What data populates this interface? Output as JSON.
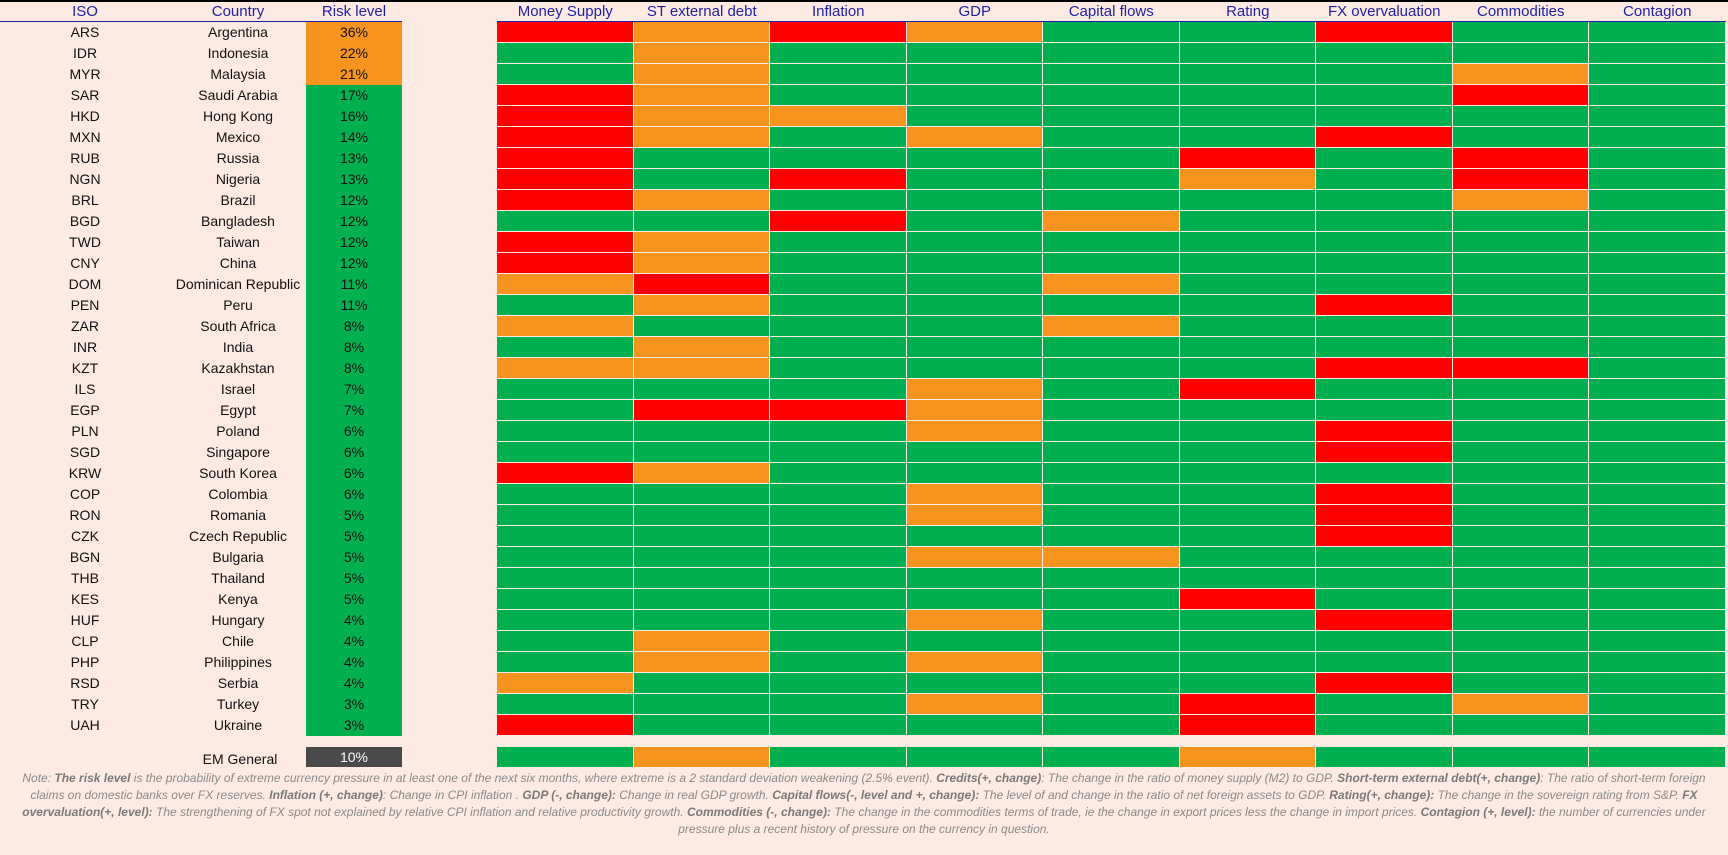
{
  "colors": {
    "green": "#00b050",
    "orange": "#f79420",
    "red": "#ff0000",
    "background": "#fdebe3",
    "header_text": "#1f1fa8",
    "em_box": "#4a4a4a"
  },
  "headers": {
    "iso": "ISO",
    "country": "Country",
    "risk": "Risk level",
    "indicators": [
      "Money Supply",
      "ST external debt",
      "Inflation",
      "GDP",
      "Capital flows",
      "Rating",
      "FX overvaluation",
      "Commodities",
      "Contagion"
    ]
  },
  "rows": [
    {
      "iso": "ARS",
      "country": "Argentina",
      "risk": "36%",
      "risk_color": "orange",
      "cells": [
        "red",
        "orange",
        "red",
        "orange",
        "green",
        "green",
        "red",
        "green",
        "green"
      ]
    },
    {
      "iso": "IDR",
      "country": "Indonesia",
      "risk": "22%",
      "risk_color": "orange",
      "cells": [
        "green",
        "orange",
        "green",
        "green",
        "green",
        "green",
        "green",
        "green",
        "green"
      ]
    },
    {
      "iso": "MYR",
      "country": "Malaysia",
      "risk": "21%",
      "risk_color": "orange",
      "cells": [
        "green",
        "orange",
        "green",
        "green",
        "green",
        "green",
        "green",
        "orange",
        "green"
      ]
    },
    {
      "iso": "SAR",
      "country": "Saudi Arabia",
      "risk": "17%",
      "risk_color": "green",
      "cells": [
        "red",
        "orange",
        "green",
        "green",
        "green",
        "green",
        "green",
        "red",
        "green"
      ]
    },
    {
      "iso": "HKD",
      "country": "Hong Kong",
      "risk": "16%",
      "risk_color": "green",
      "cells": [
        "red",
        "orange",
        "orange",
        "green",
        "green",
        "green",
        "green",
        "green",
        "green"
      ]
    },
    {
      "iso": "MXN",
      "country": "Mexico",
      "risk": "14%",
      "risk_color": "green",
      "cells": [
        "red",
        "orange",
        "green",
        "orange",
        "green",
        "green",
        "red",
        "green",
        "green"
      ]
    },
    {
      "iso": "RUB",
      "country": "Russia",
      "risk": "13%",
      "risk_color": "green",
      "cells": [
        "red",
        "green",
        "green",
        "green",
        "green",
        "red",
        "green",
        "red",
        "green"
      ]
    },
    {
      "iso": "NGN",
      "country": "Nigeria",
      "risk": "13%",
      "risk_color": "green",
      "cells": [
        "red",
        "green",
        "red",
        "green",
        "green",
        "orange",
        "green",
        "red",
        "green"
      ]
    },
    {
      "iso": "BRL",
      "country": "Brazil",
      "risk": "12%",
      "risk_color": "green",
      "cells": [
        "red",
        "orange",
        "green",
        "green",
        "green",
        "green",
        "green",
        "orange",
        "green"
      ]
    },
    {
      "iso": "BGD",
      "country": "Bangladesh",
      "risk": "12%",
      "risk_color": "green",
      "cells": [
        "green",
        "green",
        "red",
        "green",
        "orange",
        "green",
        "green",
        "green",
        "green"
      ]
    },
    {
      "iso": "TWD",
      "country": "Taiwan",
      "risk": "12%",
      "risk_color": "green",
      "cells": [
        "red",
        "orange",
        "green",
        "green",
        "green",
        "green",
        "green",
        "green",
        "green"
      ]
    },
    {
      "iso": "CNY",
      "country": "China",
      "risk": "12%",
      "risk_color": "green",
      "cells": [
        "red",
        "orange",
        "green",
        "green",
        "green",
        "green",
        "green",
        "green",
        "green"
      ]
    },
    {
      "iso": "DOM",
      "country": "Dominican Republic",
      "risk": "11%",
      "risk_color": "green",
      "cells": [
        "orange",
        "red",
        "green",
        "green",
        "orange",
        "green",
        "green",
        "green",
        "green"
      ]
    },
    {
      "iso": "PEN",
      "country": "Peru",
      "risk": "11%",
      "risk_color": "green",
      "cells": [
        "green",
        "orange",
        "green",
        "green",
        "green",
        "green",
        "red",
        "green",
        "green"
      ]
    },
    {
      "iso": "ZAR",
      "country": "South Africa",
      "risk": "8%",
      "risk_color": "green",
      "cells": [
        "orange",
        "green",
        "green",
        "green",
        "orange",
        "green",
        "green",
        "green",
        "green"
      ]
    },
    {
      "iso": "INR",
      "country": "India",
      "risk": "8%",
      "risk_color": "green",
      "cells": [
        "green",
        "orange",
        "green",
        "green",
        "green",
        "green",
        "green",
        "green",
        "green"
      ]
    },
    {
      "iso": "KZT",
      "country": "Kazakhstan",
      "risk": "8%",
      "risk_color": "green",
      "cells": [
        "orange",
        "orange",
        "green",
        "green",
        "green",
        "green",
        "red",
        "red",
        "green"
      ]
    },
    {
      "iso": "ILS",
      "country": "Israel",
      "risk": "7%",
      "risk_color": "green",
      "cells": [
        "green",
        "green",
        "green",
        "orange",
        "green",
        "red",
        "green",
        "green",
        "green"
      ]
    },
    {
      "iso": "EGP",
      "country": "Egypt",
      "risk": "7%",
      "risk_color": "green",
      "cells": [
        "green",
        "red",
        "red",
        "orange",
        "green",
        "green",
        "green",
        "green",
        "green"
      ]
    },
    {
      "iso": "PLN",
      "country": "Poland",
      "risk": "6%",
      "risk_color": "green",
      "cells": [
        "green",
        "green",
        "green",
        "orange",
        "green",
        "green",
        "red",
        "green",
        "green"
      ]
    },
    {
      "iso": "SGD",
      "country": "Singapore",
      "risk": "6%",
      "risk_color": "green",
      "cells": [
        "green",
        "green",
        "green",
        "green",
        "green",
        "green",
        "red",
        "green",
        "green"
      ]
    },
    {
      "iso": "KRW",
      "country": "South Korea",
      "risk": "6%",
      "risk_color": "green",
      "cells": [
        "red",
        "orange",
        "green",
        "green",
        "green",
        "green",
        "green",
        "green",
        "green"
      ]
    },
    {
      "iso": "COP",
      "country": "Colombia",
      "risk": "6%",
      "risk_color": "green",
      "cells": [
        "green",
        "green",
        "green",
        "orange",
        "green",
        "green",
        "red",
        "green",
        "green"
      ]
    },
    {
      "iso": "RON",
      "country": "Romania",
      "risk": "5%",
      "risk_color": "green",
      "cells": [
        "green",
        "green",
        "green",
        "orange",
        "green",
        "green",
        "red",
        "green",
        "green"
      ]
    },
    {
      "iso": "CZK",
      "country": "Czech Republic",
      "risk": "5%",
      "risk_color": "green",
      "cells": [
        "green",
        "green",
        "green",
        "green",
        "green",
        "green",
        "red",
        "green",
        "green"
      ]
    },
    {
      "iso": "BGN",
      "country": "Bulgaria",
      "risk": "5%",
      "risk_color": "green",
      "cells": [
        "green",
        "green",
        "green",
        "orange",
        "orange",
        "green",
        "green",
        "green",
        "green"
      ]
    },
    {
      "iso": "THB",
      "country": "Thailand",
      "risk": "5%",
      "risk_color": "green",
      "cells": [
        "green",
        "green",
        "green",
        "green",
        "green",
        "green",
        "green",
        "green",
        "green"
      ]
    },
    {
      "iso": "KES",
      "country": "Kenya",
      "risk": "5%",
      "risk_color": "green",
      "cells": [
        "green",
        "green",
        "green",
        "green",
        "green",
        "red",
        "green",
        "green",
        "green"
      ]
    },
    {
      "iso": "HUF",
      "country": "Hungary",
      "risk": "4%",
      "risk_color": "green",
      "cells": [
        "green",
        "green",
        "green",
        "orange",
        "green",
        "green",
        "red",
        "green",
        "green"
      ]
    },
    {
      "iso": "CLP",
      "country": "Chile",
      "risk": "4%",
      "risk_color": "green",
      "cells": [
        "green",
        "orange",
        "green",
        "green",
        "green",
        "green",
        "green",
        "green",
        "green"
      ]
    },
    {
      "iso": "PHP",
      "country": "Philippines",
      "risk": "4%",
      "risk_color": "green",
      "cells": [
        "green",
        "orange",
        "green",
        "orange",
        "green",
        "green",
        "green",
        "green",
        "green"
      ]
    },
    {
      "iso": "RSD",
      "country": "Serbia",
      "risk": "4%",
      "risk_color": "green",
      "cells": [
        "orange",
        "green",
        "green",
        "green",
        "green",
        "green",
        "red",
        "green",
        "green"
      ]
    },
    {
      "iso": "TRY",
      "country": "Turkey",
      "risk": "3%",
      "risk_color": "green",
      "cells": [
        "green",
        "green",
        "green",
        "orange",
        "green",
        "red",
        "green",
        "orange",
        "green"
      ]
    },
    {
      "iso": "UAH",
      "country": "Ukraine",
      "risk": "3%",
      "risk_color": "green",
      "cells": [
        "red",
        "green",
        "green",
        "green",
        "green",
        "red",
        "green",
        "green",
        "green"
      ]
    }
  ],
  "em_general": {
    "label": "EM General",
    "value": "10%",
    "cells": [
      "green",
      "orange",
      "green",
      "green",
      "green",
      "orange",
      "green",
      "green",
      "green"
    ]
  },
  "note": {
    "p1": "Note: ",
    "b1": "The risk level",
    "p2": " is the probability of extreme currency pressure in at least one of the next six months, where extreme is a 2 standard deviation weakening (2.5% event).  ",
    "b2": "Credits(+, change)",
    "p3": ": The change in the ratio of money supply (M2) to GDP.  ",
    "b3": "Short-term external debt(+, change)",
    "p4": ": The ratio of short-term foreign claims on domestic banks over FX reserves.  ",
    "b4": "Inflation (+, change)",
    "p5": ": Change in CPI inflation .  ",
    "b5": "GDP (-, change):",
    "p6": " Change in real GDP growth.  ",
    "b6": "Capital flows(-, level and +, change):",
    "p7": " The level of and change in the ratio of net foreign assets to GDP.  ",
    "b7": "Rating(+, change):",
    "p8": " The change in the sovereign rating from S&P.  ",
    "b8": "FX overvaluation(+, level):",
    "p9": " The strengthening of FX spot not explained by relative CPI inflation and relative productivity growth.  ",
    "b9": "Commodities (-, change):",
    "p10": " The change in the commodities terms of trade, ie the change in export prices less the change in import prices.  ",
    "b10": "Contagion (+, level):",
    "p11": " the number of currencies under pressure plus a recent history of pressure on the currency in question."
  }
}
